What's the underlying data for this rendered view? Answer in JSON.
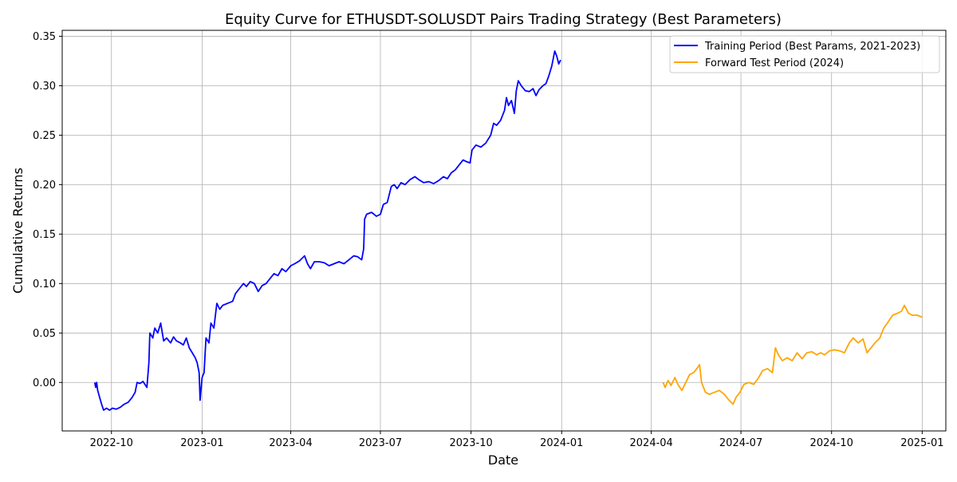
{
  "chart_data": {
    "type": "line",
    "title": "Equity Curve for ETHUSDT-SOLUSDT Pairs Trading Strategy (Best Parameters)",
    "xlabel": "Date",
    "ylabel": "Cumulative Returns",
    "xlim": [
      "2022-08-12",
      "2025-01-25"
    ],
    "ylim": [
      -0.049,
      0.356
    ],
    "x_ticks": [
      "2022-10",
      "2023-01",
      "2023-04",
      "2023-07",
      "2023-10",
      "2024-01",
      "2024-04",
      "2024-07",
      "2024-10",
      "2025-01"
    ],
    "x_tick_dates": [
      "2022-10-01",
      "2023-01-01",
      "2023-04-01",
      "2023-07-01",
      "2023-10-01",
      "2024-01-01",
      "2024-04-01",
      "2024-07-01",
      "2024-10-01",
      "2025-01-01"
    ],
    "y_ticks": [
      "0.00",
      "0.05",
      "0.10",
      "0.15",
      "0.20",
      "0.25",
      "0.30",
      "0.35"
    ],
    "y_tick_values": [
      0.0,
      0.05,
      0.1,
      0.15,
      0.2,
      0.25,
      0.3,
      0.35
    ],
    "grid": true,
    "legend_position": "top-right",
    "series": [
      {
        "name": "Training Period (Best Params, 2021-2023)",
        "color": "#0000ff",
        "points": [
          [
            "2022-09-14",
            0.0
          ],
          [
            "2022-09-15",
            -0.005
          ],
          [
            "2022-09-16",
            0.0
          ],
          [
            "2022-09-17",
            -0.008
          ],
          [
            "2022-09-19",
            -0.015
          ],
          [
            "2022-09-21",
            -0.022
          ],
          [
            "2022-09-23",
            -0.028
          ],
          [
            "2022-09-26",
            -0.026
          ],
          [
            "2022-09-29",
            -0.028
          ],
          [
            "2022-10-02",
            -0.026
          ],
          [
            "2022-10-06",
            -0.027
          ],
          [
            "2022-10-10",
            -0.025
          ],
          [
            "2022-10-14",
            -0.022
          ],
          [
            "2022-10-18",
            -0.02
          ],
          [
            "2022-10-22",
            -0.015
          ],
          [
            "2022-10-25",
            -0.01
          ],
          [
            "2022-10-27",
            0.0
          ],
          [
            "2022-10-30",
            -0.001
          ],
          [
            "2022-11-02",
            0.001
          ],
          [
            "2022-11-06",
            -0.005
          ],
          [
            "2022-11-08",
            0.02
          ],
          [
            "2022-11-09",
            0.05
          ],
          [
            "2022-11-12",
            0.045
          ],
          [
            "2022-11-14",
            0.055
          ],
          [
            "2022-11-17",
            0.05
          ],
          [
            "2022-11-20",
            0.06
          ],
          [
            "2022-11-23",
            0.042
          ],
          [
            "2022-11-26",
            0.045
          ],
          [
            "2022-11-30",
            0.04
          ],
          [
            "2022-12-03",
            0.046
          ],
          [
            "2022-12-06",
            0.042
          ],
          [
            "2022-12-10",
            0.04
          ],
          [
            "2022-12-13",
            0.038
          ],
          [
            "2022-12-16",
            0.045
          ],
          [
            "2022-12-19",
            0.035
          ],
          [
            "2022-12-22",
            0.03
          ],
          [
            "2022-12-25",
            0.025
          ],
          [
            "2022-12-27",
            0.02
          ],
          [
            "2022-12-29",
            0.01
          ],
          [
            "2022-12-30",
            -0.018
          ],
          [
            "2023-01-01",
            0.005
          ],
          [
            "2023-01-03",
            0.01
          ],
          [
            "2023-01-05",
            0.045
          ],
          [
            "2023-01-08",
            0.04
          ],
          [
            "2023-01-10",
            0.06
          ],
          [
            "2023-01-13",
            0.055
          ],
          [
            "2023-01-16",
            0.08
          ],
          [
            "2023-01-19",
            0.074
          ],
          [
            "2023-01-22",
            0.078
          ],
          [
            "2023-01-27",
            0.08
          ],
          [
            "2023-02-01",
            0.082
          ],
          [
            "2023-02-04",
            0.09
          ],
          [
            "2023-02-08",
            0.095
          ],
          [
            "2023-02-12",
            0.1
          ],
          [
            "2023-02-15",
            0.097
          ],
          [
            "2023-02-19",
            0.102
          ],
          [
            "2023-02-23",
            0.1
          ],
          [
            "2023-02-27",
            0.092
          ],
          [
            "2023-03-03",
            0.098
          ],
          [
            "2023-03-07",
            0.1
          ],
          [
            "2023-03-11",
            0.105
          ],
          [
            "2023-03-15",
            0.11
          ],
          [
            "2023-03-19",
            0.108
          ],
          [
            "2023-03-23",
            0.115
          ],
          [
            "2023-03-27",
            0.112
          ],
          [
            "2023-04-01",
            0.118
          ],
          [
            "2023-04-05",
            0.12
          ],
          [
            "2023-04-10",
            0.123
          ],
          [
            "2023-04-15",
            0.128
          ],
          [
            "2023-04-18",
            0.12
          ],
          [
            "2023-04-21",
            0.115
          ],
          [
            "2023-04-25",
            0.122
          ],
          [
            "2023-04-30",
            0.122
          ],
          [
            "2023-05-05",
            0.121
          ],
          [
            "2023-05-10",
            0.118
          ],
          [
            "2023-05-15",
            0.12
          ],
          [
            "2023-05-20",
            0.122
          ],
          [
            "2023-05-25",
            0.12
          ],
          [
            "2023-05-30",
            0.124
          ],
          [
            "2023-06-04",
            0.128
          ],
          [
            "2023-06-08",
            0.127
          ],
          [
            "2023-06-12",
            0.124
          ],
          [
            "2023-06-14",
            0.135
          ],
          [
            "2023-06-15",
            0.165
          ],
          [
            "2023-06-17",
            0.17
          ],
          [
            "2023-06-22",
            0.172
          ],
          [
            "2023-06-27",
            0.168
          ],
          [
            "2023-07-01",
            0.17
          ],
          [
            "2023-07-04",
            0.18
          ],
          [
            "2023-07-08",
            0.182
          ],
          [
            "2023-07-12",
            0.198
          ],
          [
            "2023-07-15",
            0.2
          ],
          [
            "2023-07-18",
            0.196
          ],
          [
            "2023-07-22",
            0.202
          ],
          [
            "2023-07-26",
            0.2
          ],
          [
            "2023-07-31",
            0.205
          ],
          [
            "2023-08-05",
            0.208
          ],
          [
            "2023-08-09",
            0.205
          ],
          [
            "2023-08-14",
            0.202
          ],
          [
            "2023-08-19",
            0.203
          ],
          [
            "2023-08-24",
            0.201
          ],
          [
            "2023-08-29",
            0.204
          ],
          [
            "2023-09-03",
            0.208
          ],
          [
            "2023-09-07",
            0.206
          ],
          [
            "2023-09-11",
            0.212
          ],
          [
            "2023-09-15",
            0.215
          ],
          [
            "2023-09-19",
            0.22
          ],
          [
            "2023-09-23",
            0.225
          ],
          [
            "2023-09-27",
            0.223
          ],
          [
            "2023-09-30",
            0.222
          ],
          [
            "2023-10-02",
            0.235
          ],
          [
            "2023-10-06",
            0.24
          ],
          [
            "2023-10-11",
            0.238
          ],
          [
            "2023-10-16",
            0.242
          ],
          [
            "2023-10-21",
            0.25
          ],
          [
            "2023-10-24",
            0.262
          ],
          [
            "2023-10-27",
            0.26
          ],
          [
            "2023-10-31",
            0.265
          ],
          [
            "2023-11-04",
            0.275
          ],
          [
            "2023-11-06",
            0.288
          ],
          [
            "2023-11-08",
            0.28
          ],
          [
            "2023-11-11",
            0.285
          ],
          [
            "2023-11-14",
            0.272
          ],
          [
            "2023-11-16",
            0.295
          ],
          [
            "2023-11-18",
            0.305
          ],
          [
            "2023-11-21",
            0.3
          ],
          [
            "2023-11-25",
            0.295
          ],
          [
            "2023-11-29",
            0.294
          ],
          [
            "2023-12-03",
            0.297
          ],
          [
            "2023-12-06",
            0.29
          ],
          [
            "2023-12-09",
            0.296
          ],
          [
            "2023-12-13",
            0.3
          ],
          [
            "2023-12-16",
            0.302
          ],
          [
            "2023-12-19",
            0.31
          ],
          [
            "2023-12-22",
            0.32
          ],
          [
            "2023-12-25",
            0.335
          ],
          [
            "2023-12-27",
            0.33
          ],
          [
            "2023-12-29",
            0.322
          ],
          [
            "2023-12-31",
            0.326
          ]
        ]
      },
      {
        "name": "Forward Test Period (2024)",
        "color": "#ffa500",
        "points": [
          [
            "2024-04-13",
            0.0
          ],
          [
            "2024-04-15",
            -0.005
          ],
          [
            "2024-04-18",
            0.002
          ],
          [
            "2024-04-21",
            -0.003
          ],
          [
            "2024-04-25",
            0.005
          ],
          [
            "2024-04-28",
            -0.002
          ],
          [
            "2024-05-02",
            -0.008
          ],
          [
            "2024-05-06",
            0.0
          ],
          [
            "2024-05-10",
            0.008
          ],
          [
            "2024-05-14",
            0.01
          ],
          [
            "2024-05-18",
            0.015
          ],
          [
            "2024-05-20",
            0.018
          ],
          [
            "2024-05-22",
            0.0
          ],
          [
            "2024-05-26",
            -0.01
          ],
          [
            "2024-05-30",
            -0.012
          ],
          [
            "2024-06-04",
            -0.01
          ],
          [
            "2024-06-09",
            -0.008
          ],
          [
            "2024-06-14",
            -0.012
          ],
          [
            "2024-06-19",
            -0.018
          ],
          [
            "2024-06-23",
            -0.022
          ],
          [
            "2024-06-26",
            -0.015
          ],
          [
            "2024-06-30",
            -0.01
          ],
          [
            "2024-07-04",
            -0.002
          ],
          [
            "2024-07-09",
            0.0
          ],
          [
            "2024-07-14",
            -0.002
          ],
          [
            "2024-07-19",
            0.005
          ],
          [
            "2024-07-23",
            0.012
          ],
          [
            "2024-07-28",
            0.014
          ],
          [
            "2024-08-02",
            0.01
          ],
          [
            "2024-08-05",
            0.035
          ],
          [
            "2024-08-08",
            0.028
          ],
          [
            "2024-08-12",
            0.022
          ],
          [
            "2024-08-17",
            0.025
          ],
          [
            "2024-08-22",
            0.022
          ],
          [
            "2024-08-27",
            0.03
          ],
          [
            "2024-09-01",
            0.024
          ],
          [
            "2024-09-06",
            0.03
          ],
          [
            "2024-09-11",
            0.031
          ],
          [
            "2024-09-16",
            0.028
          ],
          [
            "2024-09-20",
            0.03
          ],
          [
            "2024-09-24",
            0.028
          ],
          [
            "2024-09-29",
            0.032
          ],
          [
            "2024-10-04",
            0.033
          ],
          [
            "2024-10-09",
            0.032
          ],
          [
            "2024-10-14",
            0.03
          ],
          [
            "2024-10-19",
            0.04
          ],
          [
            "2024-10-23",
            0.045
          ],
          [
            "2024-10-28",
            0.04
          ],
          [
            "2024-11-02",
            0.044
          ],
          [
            "2024-11-06",
            0.03
          ],
          [
            "2024-11-10",
            0.035
          ],
          [
            "2024-11-14",
            0.04
          ],
          [
            "2024-11-19",
            0.045
          ],
          [
            "2024-11-23",
            0.055
          ],
          [
            "2024-11-28",
            0.062
          ],
          [
            "2024-12-02",
            0.068
          ],
          [
            "2024-12-07",
            0.07
          ],
          [
            "2024-12-11",
            0.072
          ],
          [
            "2024-12-14",
            0.078
          ],
          [
            "2024-12-18",
            0.07
          ],
          [
            "2024-12-22",
            0.068
          ],
          [
            "2024-12-27",
            0.068
          ],
          [
            "2025-01-01",
            0.066
          ]
        ]
      }
    ]
  }
}
